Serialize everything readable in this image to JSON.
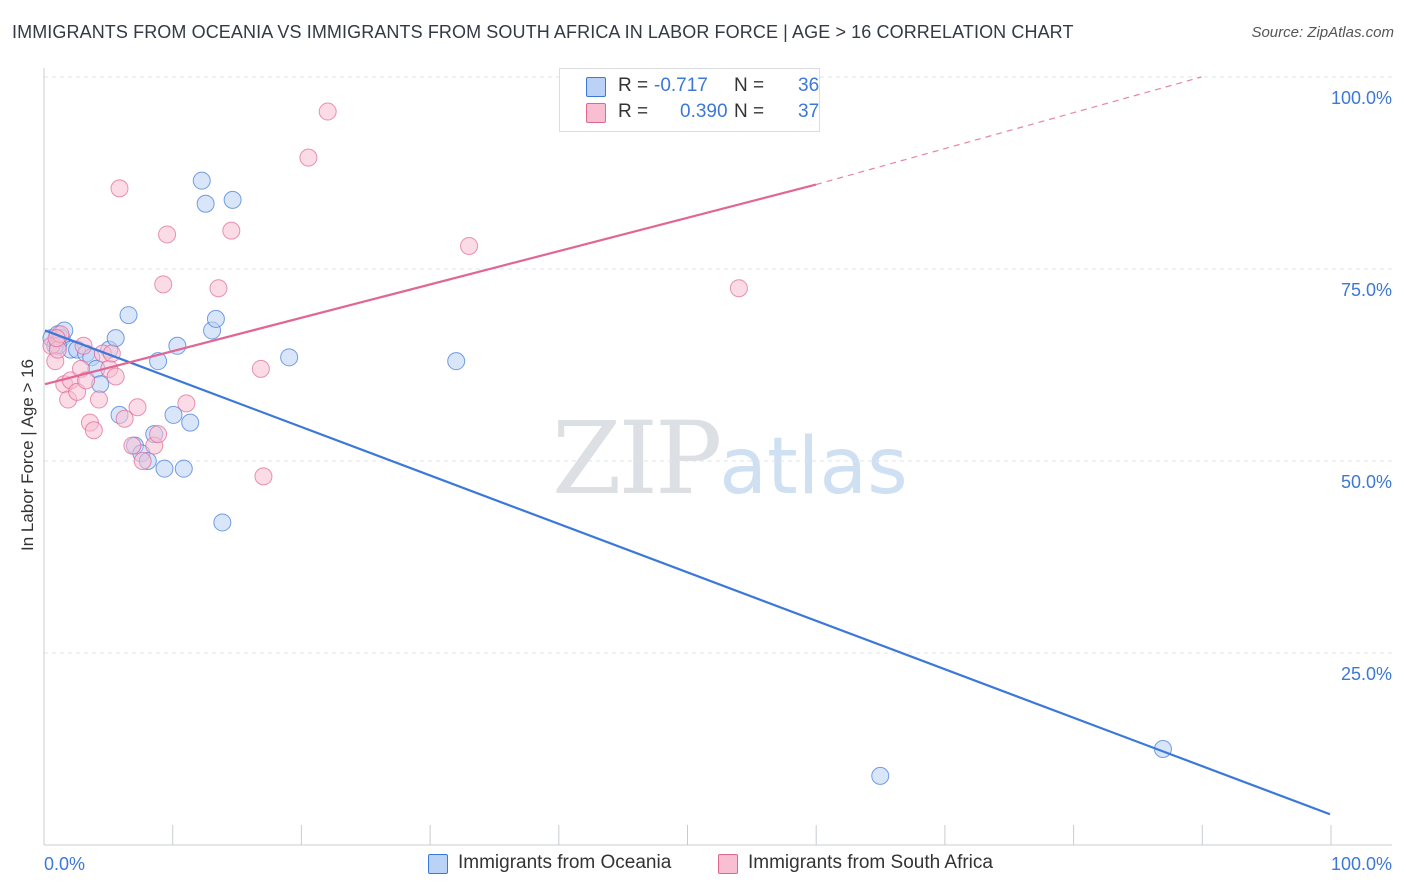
{
  "title": "IMMIGRANTS FROM OCEANIA VS IMMIGRANTS FROM SOUTH AFRICA IN LABOR FORCE | AGE > 16 CORRELATION CHART",
  "source": "Source: ZipAtlas.com",
  "watermark": {
    "zip": "ZIP",
    "atlas": "atlas"
  },
  "colors": {
    "blue": "#3c78d8",
    "blue_fill": "#b9d2f5",
    "pink": "#e06694",
    "pink_fill": "#f7bfd1",
    "grid": "#dfe3e8",
    "axis_text": "#3c78d8"
  },
  "legend": [
    {
      "r_label": "R =",
      "r_value": "-0.717",
      "n_label": "N =",
      "n_value": "36"
    },
    {
      "r_label": "R =",
      "r_value": "0.390",
      "n_label": "N =",
      "n_value": "37"
    }
  ],
  "bottom_legend": [
    "Immigrants from Oceania",
    "Immigrants from South Africa"
  ],
  "chart_data": {
    "type": "scatter",
    "title": "IMMIGRANTS FROM OCEANIA VS IMMIGRANTS FROM SOUTH AFRICA IN LABOR FORCE | AGE > 16 CORRELATION CHART",
    "xlabel": "",
    "ylabel": "In Labor Force | Age > 16",
    "xlim": [
      0,
      100
    ],
    "ylim": [
      0,
      100
    ],
    "x_tick_labels": [
      "0.0%",
      "100.0%"
    ],
    "y_tick_labels": [
      "25.0%",
      "50.0%",
      "75.0%",
      "100.0%"
    ],
    "y_ticks": [
      25,
      50,
      75,
      100
    ],
    "grid": true,
    "legend_position": "top-center",
    "series": [
      {
        "name": "Immigrants from Oceania",
        "color": "#3c78d8",
        "points": [
          [
            0.5,
            66
          ],
          [
            0.8,
            65
          ],
          [
            1.0,
            66.5
          ],
          [
            1.3,
            66
          ],
          [
            1.5,
            67
          ],
          [
            2.0,
            64.5
          ],
          [
            2.5,
            64.5
          ],
          [
            3.2,
            64
          ],
          [
            3.6,
            63.5
          ],
          [
            4.0,
            62
          ],
          [
            4.3,
            60
          ],
          [
            5.0,
            64.5
          ],
          [
            5.5,
            66
          ],
          [
            5.8,
            56
          ],
          [
            6.5,
            69
          ],
          [
            7.0,
            52
          ],
          [
            7.5,
            51
          ],
          [
            8.0,
            50
          ],
          [
            8.5,
            53.5
          ],
          [
            8.8,
            63
          ],
          [
            9.3,
            49
          ],
          [
            10.0,
            56
          ],
          [
            10.3,
            65
          ],
          [
            10.8,
            49
          ],
          [
            11.3,
            55
          ],
          [
            12.2,
            86.5
          ],
          [
            12.5,
            83.5
          ],
          [
            13.0,
            67
          ],
          [
            13.3,
            68.5
          ],
          [
            13.8,
            42
          ],
          [
            14.6,
            84
          ],
          [
            19.0,
            63.5
          ],
          [
            32.0,
            63
          ],
          [
            65.0,
            9
          ],
          [
            87.0,
            12.5
          ],
          [
            1.0,
            65
          ]
        ],
        "trend": {
          "x": [
            0,
            100
          ],
          "y": [
            67,
            4
          ]
        }
      },
      {
        "name": "Immigrants from South Africa",
        "color": "#e06694",
        "points": [
          [
            0.5,
            65
          ],
          [
            0.8,
            63
          ],
          [
            1.0,
            64.5
          ],
          [
            1.2,
            66.5
          ],
          [
            1.5,
            60
          ],
          [
            1.8,
            58
          ],
          [
            2.0,
            60.5
          ],
          [
            2.5,
            59
          ],
          [
            2.8,
            62
          ],
          [
            3.2,
            60.5
          ],
          [
            3.5,
            55
          ],
          [
            3.8,
            54
          ],
          [
            4.2,
            58
          ],
          [
            4.5,
            64
          ],
          [
            5.0,
            62
          ],
          [
            5.5,
            61
          ],
          [
            5.8,
            85.5
          ],
          [
            6.2,
            55.5
          ],
          [
            6.8,
            52
          ],
          [
            7.2,
            57
          ],
          [
            7.6,
            50
          ],
          [
            8.5,
            52
          ],
          [
            8.8,
            53.5
          ],
          [
            9.2,
            73
          ],
          [
            9.5,
            79.5
          ],
          [
            11.0,
            57.5
          ],
          [
            13.5,
            72.5
          ],
          [
            14.5,
            80
          ],
          [
            16.8,
            62
          ],
          [
            17.0,
            48
          ],
          [
            20.5,
            89.5
          ],
          [
            22.0,
            95.5
          ],
          [
            33.0,
            78
          ],
          [
            54.0,
            72.5
          ],
          [
            0.9,
            66
          ],
          [
            3.0,
            65
          ],
          [
            5.2,
            64
          ]
        ],
        "trend": {
          "x": [
            0,
            60,
            90
          ],
          "y": [
            60,
            86,
            100
          ]
        }
      }
    ]
  }
}
